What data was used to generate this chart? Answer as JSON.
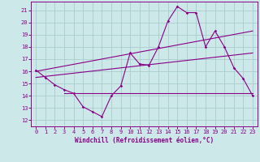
{
  "xlabel": "Windchill (Refroidissement éolien,°C)",
  "xlim": [
    -0.5,
    23.5
  ],
  "ylim": [
    11.5,
    21.7
  ],
  "yticks": [
    12,
    13,
    14,
    15,
    16,
    17,
    18,
    19,
    20,
    21
  ],
  "xticks": [
    0,
    1,
    2,
    3,
    4,
    5,
    6,
    7,
    8,
    9,
    10,
    11,
    12,
    13,
    14,
    15,
    16,
    17,
    18,
    19,
    20,
    21,
    22,
    23
  ],
  "bg_color": "#cce8e8",
  "grid_color": "#aacccc",
  "line_color": "#880088",
  "curve1_x": [
    0,
    1,
    2,
    3,
    4,
    5,
    6,
    7,
    8,
    9,
    10,
    11,
    12,
    13,
    14,
    15,
    16,
    17,
    18,
    19,
    20,
    21,
    22,
    23
  ],
  "curve1_y": [
    16.1,
    15.5,
    14.9,
    14.5,
    14.2,
    13.1,
    12.7,
    12.3,
    14.0,
    14.8,
    17.5,
    16.6,
    16.5,
    18.0,
    20.1,
    21.3,
    20.8,
    20.8,
    18.0,
    19.3,
    18.0,
    16.3,
    15.4,
    14.0
  ],
  "line2_x": [
    0,
    23
  ],
  "line2_y": [
    15.5,
    17.5
  ],
  "line3_x": [
    0,
    23
  ],
  "line3_y": [
    16.0,
    19.3
  ],
  "flat_line_x": [
    3,
    23
  ],
  "flat_line_y": [
    14.2,
    14.2
  ],
  "xlabel_fontsize": 5.5,
  "tick_fontsize": 5.0
}
